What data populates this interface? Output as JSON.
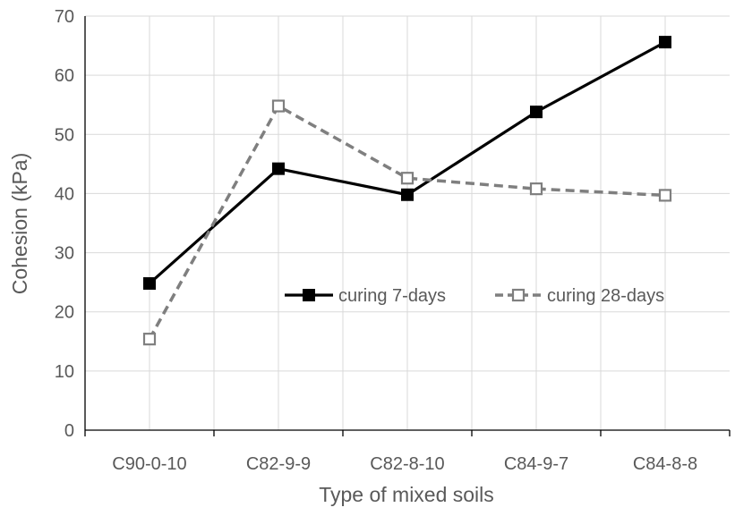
{
  "chart_data": {
    "type": "line",
    "title": "",
    "xlabel": "Type of mixed soils",
    "ylabel": "Cohesion (kPa)",
    "categories": [
      "C90-0-10",
      "C82-9-9",
      "C82-8-10",
      "C84-9-7",
      "C84-8-8"
    ],
    "ylim": [
      0,
      70
    ],
    "yticks": [
      0,
      10,
      20,
      30,
      40,
      50,
      60,
      70
    ],
    "grid": true,
    "legend_position": "center-right",
    "series": [
      {
        "name": "curing 7-days",
        "values": [
          24.8,
          44.2,
          39.8,
          53.8,
          65.6
        ],
        "color": "#000000",
        "line_style": "solid",
        "marker": "filled-square"
      },
      {
        "name": "curing 28-days",
        "values": [
          15.4,
          54.8,
          42.6,
          40.8,
          39.7
        ],
        "color": "#7f7f7f",
        "line_style": "dashed",
        "marker": "hollow-square"
      }
    ]
  }
}
